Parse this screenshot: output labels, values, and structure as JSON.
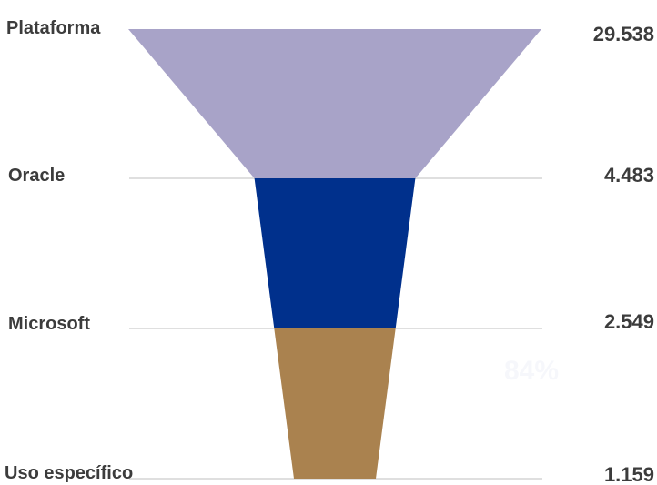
{
  "chart_data": {
    "type": "funnel",
    "categories": [
      "Plataforma",
      "Oracle",
      "Microsoft",
      "Uso específico"
    ],
    "values_text": [
      "29.538",
      "4.483",
      "2.549",
      "1.159"
    ],
    "values": [
      29538,
      4483,
      2549,
      1159
    ],
    "colors": [
      "#a8a3c8",
      "#00308c",
      "#aa824f"
    ],
    "annotation": "84%",
    "grid_color": "#cccccc"
  }
}
